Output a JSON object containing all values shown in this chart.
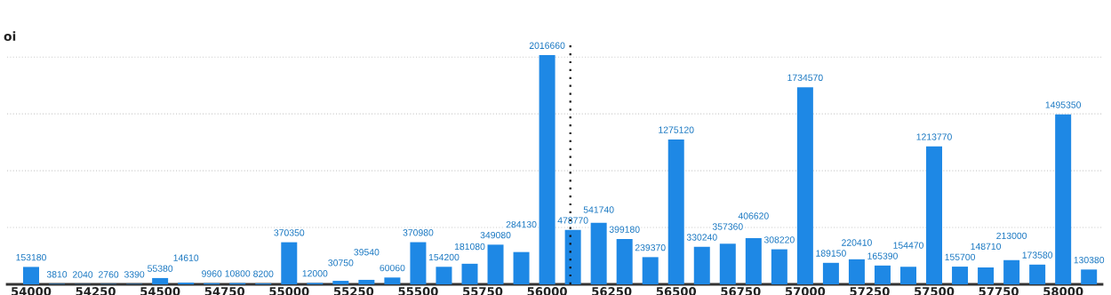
{
  "chart_data": {
    "type": "bar",
    "ylabel": "oi",
    "x": [
      54000,
      54100,
      54200,
      54300,
      54400,
      54500,
      54600,
      54700,
      54800,
      54900,
      55000,
      55100,
      55200,
      55300,
      55400,
      55500,
      55600,
      55700,
      55800,
      55900,
      56000,
      56100,
      56200,
      56300,
      56400,
      56500,
      56600,
      56700,
      56800,
      56900,
      57000,
      57100,
      57200,
      57300,
      57400,
      57500,
      57600,
      57700,
      57800,
      57900,
      58000,
      58100
    ],
    "series": [
      {
        "color": "#1e88e5",
        "values": [
          153180,
          3810,
          2040,
          2760,
          3390,
          55380,
          14610,
          9960,
          10800,
          8200,
          370350,
          12000,
          30750,
          39540,
          60060,
          370980,
          154200,
          181080,
          349080,
          284130,
          2016660,
          478770,
          541740,
          399180,
          239370,
          1275120,
          330240,
          357360,
          406620,
          308220,
          1734570,
          189150,
          220410,
          165390,
          154470,
          1213770,
          155700,
          148710,
          213000,
          173580,
          1495350,
          130380
        ]
      }
    ],
    "data_labels": true,
    "xlim": [
      53907,
      58151
    ],
    "xticks": [
      54000,
      54250,
      54500,
      54750,
      55000,
      55250,
      55500,
      55750,
      56000,
      56250,
      56500,
      56750,
      57000,
      57250,
      57500,
      57750,
      58000
    ],
    "ylim": [
      0,
      2150000
    ],
    "yticks": [
      {
        "value": 0,
        "label": null
      },
      {
        "value": 500000,
        "label": null
      },
      {
        "value": 1000000,
        "label": null
      },
      {
        "value": 1500000,
        "label": null
      },
      {
        "value": 2000000,
        "label": null
      }
    ],
    "tick_labels": "x",
    "grid": "y",
    "legend": false,
    "ref_lines": [
      {
        "axis": "x",
        "value": 56090,
        "color": "#111111",
        "line_style": "dotted"
      }
    ]
  }
}
